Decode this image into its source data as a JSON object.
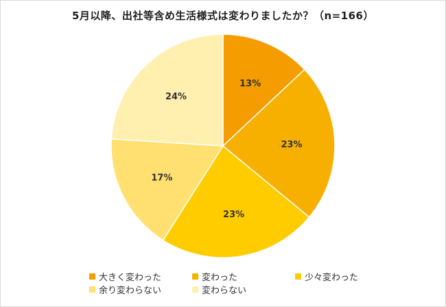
{
  "chart_data": {
    "type": "pie",
    "title": "5月以降、出社等含め生活様式は変わりましたか？（n=166）",
    "slices": [
      {
        "label": "大きく変わった",
        "value": 13,
        "display": "13%",
        "color": "#F59C00"
      },
      {
        "label": "変わった",
        "value": 23,
        "display": "23%",
        "color": "#F8B000"
      },
      {
        "label": "少々変わった",
        "value": 23,
        "display": "23%",
        "color": "#FFCC00"
      },
      {
        "label": "余り変わらない",
        "value": 17,
        "display": "17%",
        "color": "#FFE070"
      },
      {
        "label": "変わらない",
        "value": 24,
        "display": "24%",
        "color": "#FFF0B0"
      }
    ],
    "legend_position": "bottom",
    "start_angle": "12 o'clock",
    "direction": "clockwise"
  }
}
